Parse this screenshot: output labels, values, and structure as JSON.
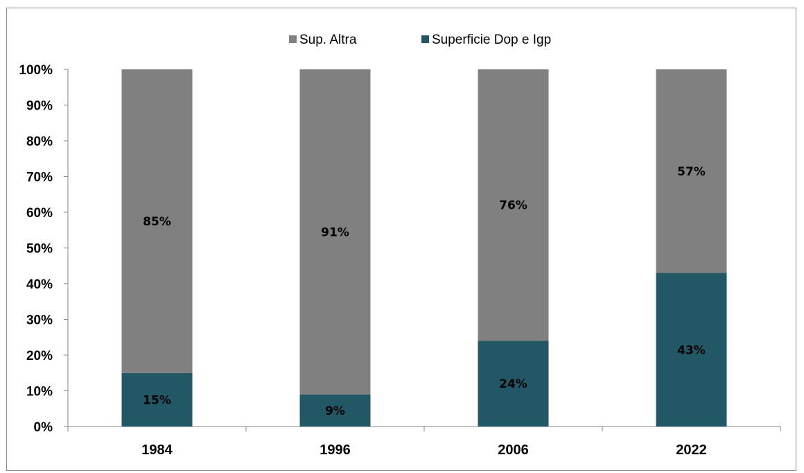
{
  "chart_data": {
    "type": "bar",
    "stacked": true,
    "normalized": true,
    "categories": [
      "1984",
      "1996",
      "2006",
      "2022"
    ],
    "series": [
      {
        "name": "Superficie Dop e Igp",
        "values": [
          15,
          9,
          24,
          43
        ],
        "labels": [
          "15%",
          "9%",
          "24%",
          "43%"
        ],
        "color": "#225866"
      },
      {
        "name": "Sup. Altra",
        "values": [
          85,
          91,
          76,
          57
        ],
        "labels": [
          "85%",
          "91%",
          "76%",
          "57%"
        ],
        "color": "#808080"
      }
    ],
    "legend_order": [
      1,
      0
    ],
    "yticks": [
      "0%",
      "10%",
      "20%",
      "30%",
      "40%",
      "50%",
      "60%",
      "70%",
      "80%",
      "90%",
      "100%"
    ],
    "ylim": [
      0,
      100
    ],
    "legend_position": "top",
    "grid": false,
    "title": "",
    "xlabel": "",
    "ylabel": ""
  }
}
